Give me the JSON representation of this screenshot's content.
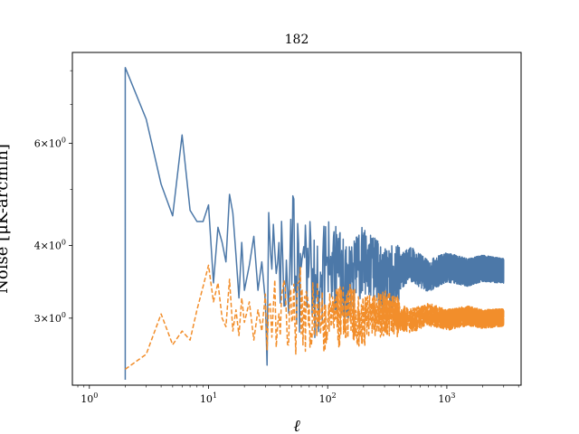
{
  "chart_data": {
    "type": "line",
    "title": "182",
    "xlabel": "ℓ",
    "ylabel": "Noise [μK-arcmin]",
    "xscale": "log",
    "yscale": "log",
    "xlim": [
      0.72,
      4200
    ],
    "ylim": [
      2.3,
      8.6
    ],
    "grid": false,
    "x_ticks": [
      {
        "value": 1,
        "base": "10",
        "exp": "0"
      },
      {
        "value": 10,
        "base": "10",
        "exp": "1"
      },
      {
        "value": 100,
        "base": "10",
        "exp": "2"
      },
      {
        "value": 1000,
        "base": "10",
        "exp": "3"
      }
    ],
    "y_ticks": [
      {
        "value": 3,
        "mantissa": "3",
        "base": "10",
        "exp": "0"
      },
      {
        "value": 4,
        "mantissa": "4",
        "base": "10",
        "exp": "0"
      },
      {
        "value": 6,
        "mantissa": "6",
        "base": "10",
        "exp": "0"
      }
    ],
    "series": [
      {
        "color": "#4c78a8",
        "style": "solid",
        "x": [
          2,
          2,
          3,
          4,
          5,
          6,
          7,
          8,
          9,
          10,
          11,
          12,
          13,
          14,
          15,
          16,
          17,
          18,
          19,
          20,
          22,
          24,
          26,
          28,
          30,
          33,
          36,
          40,
          45,
          50,
          60,
          70,
          80,
          100,
          150,
          200,
          300,
          500,
          700,
          1000,
          1500,
          2000,
          3000
        ],
        "values": [
          2.35,
          8.1,
          6.6,
          5.1,
          4.5,
          6.2,
          4.6,
          4.4,
          4.4,
          4.7,
          3.45,
          4.3,
          4.05,
          3.75,
          4.9,
          4.55,
          3.85,
          3.25,
          4.05,
          3.35,
          3.7,
          4.15,
          3.35,
          3.75,
          3.2,
          3.9,
          3.3,
          3.95,
          3.4,
          4.05,
          3.5,
          3.75,
          3.35,
          3.85,
          3.45,
          3.8,
          3.5,
          3.72,
          3.55,
          3.68,
          3.6,
          3.66,
          3.62
        ],
        "noise": 0.035
      },
      {
        "color": "#f28e2b",
        "style": "dashed",
        "x": [
          2,
          3,
          4,
          5,
          6,
          7,
          8,
          9,
          10,
          11,
          12,
          13,
          14,
          15,
          16,
          17,
          18,
          19,
          20,
          22,
          24,
          26,
          28,
          30,
          33,
          36,
          40,
          45,
          50,
          60,
          70,
          80,
          100,
          150,
          200,
          300,
          500,
          700,
          1000,
          1500,
          2000,
          3000
        ],
        "values": [
          2.45,
          2.6,
          3.05,
          2.7,
          2.85,
          2.75,
          3.1,
          3.4,
          3.7,
          3.2,
          3.45,
          3.0,
          2.9,
          3.5,
          2.85,
          3.1,
          2.8,
          3.25,
          2.95,
          3.2,
          2.75,
          3.1,
          2.85,
          3.3,
          2.9,
          3.15,
          2.85,
          3.1,
          2.95,
          3.25,
          2.9,
          3.15,
          2.95,
          3.1,
          2.95,
          3.08,
          2.97,
          3.05,
          2.98,
          3.03,
          2.99,
          3.01
        ],
        "noise": 0.025
      }
    ]
  }
}
